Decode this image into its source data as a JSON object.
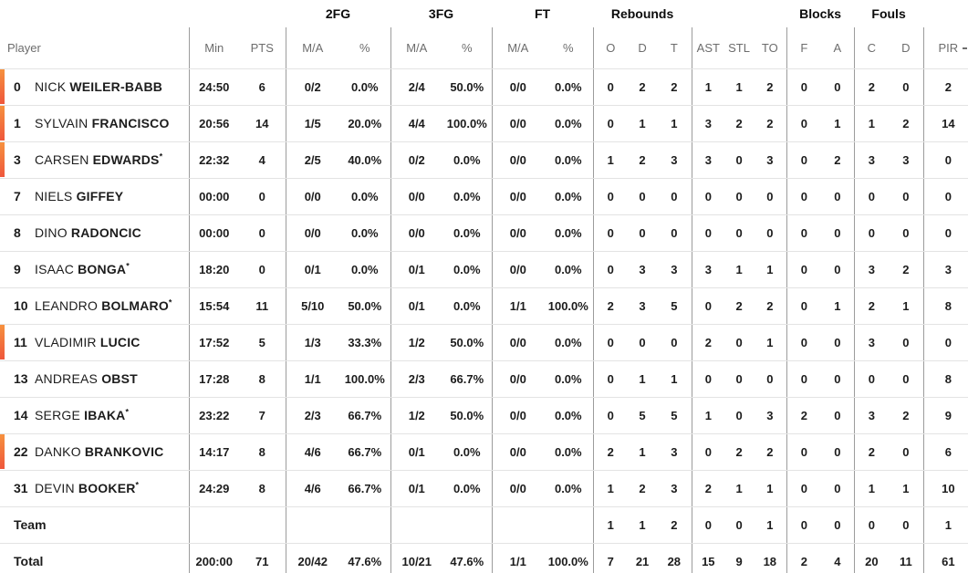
{
  "table": {
    "starter_mark": "*",
    "colors": {
      "accent_gradient_top": "#f6913e",
      "accent_gradient_bottom": "#ef573c",
      "vertical_line": "#9c9c9c",
      "row_line": "#e3e3e3",
      "header_text": "#6d6d6d",
      "text": "#1c1c1c"
    },
    "groups": {
      "fg2": "2FG",
      "fg3": "3FG",
      "ft": "FT",
      "rebounds": "Rebounds",
      "blocks": "Blocks",
      "fouls": "Fouls"
    },
    "columns": {
      "player": "Player",
      "min": "Min",
      "pts": "PTS",
      "ma": "M/A",
      "pct": "%",
      "reb_o": "O",
      "reb_d": "D",
      "reb_t": "T",
      "ast": "AST",
      "stl": "STL",
      "to": "TO",
      "blk_f": "F",
      "blk_a": "A",
      "foul_c": "C",
      "foul_d": "D",
      "pir": "PIR"
    },
    "players": [
      {
        "number": "0",
        "first": "NICK",
        "last": "WEILER-BABB",
        "starter": false,
        "on_court": true,
        "min": "24:50",
        "pts": "6",
        "fg2_ma": "0/2",
        "fg2_pct": "0.0%",
        "fg3_ma": "2/4",
        "fg3_pct": "50.0%",
        "ft_ma": "0/0",
        "ft_pct": "0.0%",
        "reb_o": "0",
        "reb_d": "2",
        "reb_t": "2",
        "ast": "1",
        "stl": "1",
        "to": "2",
        "blk_f": "0",
        "blk_a": "0",
        "foul_c": "2",
        "foul_d": "0",
        "pir": "2"
      },
      {
        "number": "1",
        "first": "SYLVAIN",
        "last": "FRANCISCO",
        "starter": false,
        "on_court": true,
        "min": "20:56",
        "pts": "14",
        "fg2_ma": "1/5",
        "fg2_pct": "20.0%",
        "fg3_ma": "4/4",
        "fg3_pct": "100.0%",
        "ft_ma": "0/0",
        "ft_pct": "0.0%",
        "reb_o": "0",
        "reb_d": "1",
        "reb_t": "1",
        "ast": "3",
        "stl": "2",
        "to": "2",
        "blk_f": "0",
        "blk_a": "1",
        "foul_c": "1",
        "foul_d": "2",
        "pir": "14"
      },
      {
        "number": "3",
        "first": "CARSEN",
        "last": "EDWARDS",
        "starter": true,
        "on_court": true,
        "min": "22:32",
        "pts": "4",
        "fg2_ma": "2/5",
        "fg2_pct": "40.0%",
        "fg3_ma": "0/2",
        "fg3_pct": "0.0%",
        "ft_ma": "0/0",
        "ft_pct": "0.0%",
        "reb_o": "1",
        "reb_d": "2",
        "reb_t": "3",
        "ast": "3",
        "stl": "0",
        "to": "3",
        "blk_f": "0",
        "blk_a": "2",
        "foul_c": "3",
        "foul_d": "3",
        "pir": "0"
      },
      {
        "number": "7",
        "first": "NIELS",
        "last": "GIFFEY",
        "starter": false,
        "on_court": false,
        "min": "00:00",
        "pts": "0",
        "fg2_ma": "0/0",
        "fg2_pct": "0.0%",
        "fg3_ma": "0/0",
        "fg3_pct": "0.0%",
        "ft_ma": "0/0",
        "ft_pct": "0.0%",
        "reb_o": "0",
        "reb_d": "0",
        "reb_t": "0",
        "ast": "0",
        "stl": "0",
        "to": "0",
        "blk_f": "0",
        "blk_a": "0",
        "foul_c": "0",
        "foul_d": "0",
        "pir": "0"
      },
      {
        "number": "8",
        "first": "DINO",
        "last": "RADONCIC",
        "starter": false,
        "on_court": false,
        "min": "00:00",
        "pts": "0",
        "fg2_ma": "0/0",
        "fg2_pct": "0.0%",
        "fg3_ma": "0/0",
        "fg3_pct": "0.0%",
        "ft_ma": "0/0",
        "ft_pct": "0.0%",
        "reb_o": "0",
        "reb_d": "0",
        "reb_t": "0",
        "ast": "0",
        "stl": "0",
        "to": "0",
        "blk_f": "0",
        "blk_a": "0",
        "foul_c": "0",
        "foul_d": "0",
        "pir": "0"
      },
      {
        "number": "9",
        "first": "ISAAC",
        "last": "BONGA",
        "starter": true,
        "on_court": false,
        "min": "18:20",
        "pts": "0",
        "fg2_ma": "0/1",
        "fg2_pct": "0.0%",
        "fg3_ma": "0/1",
        "fg3_pct": "0.0%",
        "ft_ma": "0/0",
        "ft_pct": "0.0%",
        "reb_o": "0",
        "reb_d": "3",
        "reb_t": "3",
        "ast": "3",
        "stl": "1",
        "to": "1",
        "blk_f": "0",
        "blk_a": "0",
        "foul_c": "3",
        "foul_d": "2",
        "pir": "3"
      },
      {
        "number": "10",
        "first": "LEANDRO",
        "last": "BOLMARO",
        "starter": true,
        "on_court": false,
        "min": "15:54",
        "pts": "11",
        "fg2_ma": "5/10",
        "fg2_pct": "50.0%",
        "fg3_ma": "0/1",
        "fg3_pct": "0.0%",
        "ft_ma": "1/1",
        "ft_pct": "100.0%",
        "reb_o": "2",
        "reb_d": "3",
        "reb_t": "5",
        "ast": "0",
        "stl": "2",
        "to": "2",
        "blk_f": "0",
        "blk_a": "1",
        "foul_c": "2",
        "foul_d": "1",
        "pir": "8"
      },
      {
        "number": "11",
        "first": "VLADIMIR",
        "last": "LUCIC",
        "starter": false,
        "on_court": true,
        "min": "17:52",
        "pts": "5",
        "fg2_ma": "1/3",
        "fg2_pct": "33.3%",
        "fg3_ma": "1/2",
        "fg3_pct": "50.0%",
        "ft_ma": "0/0",
        "ft_pct": "0.0%",
        "reb_o": "0",
        "reb_d": "0",
        "reb_t": "0",
        "ast": "2",
        "stl": "0",
        "to": "1",
        "blk_f": "0",
        "blk_a": "0",
        "foul_c": "3",
        "foul_d": "0",
        "pir": "0"
      },
      {
        "number": "13",
        "first": "ANDREAS",
        "last": "OBST",
        "starter": false,
        "on_court": false,
        "min": "17:28",
        "pts": "8",
        "fg2_ma": "1/1",
        "fg2_pct": "100.0%",
        "fg3_ma": "2/3",
        "fg3_pct": "66.7%",
        "ft_ma": "0/0",
        "ft_pct": "0.0%",
        "reb_o": "0",
        "reb_d": "1",
        "reb_t": "1",
        "ast": "0",
        "stl": "0",
        "to": "0",
        "blk_f": "0",
        "blk_a": "0",
        "foul_c": "0",
        "foul_d": "0",
        "pir": "8"
      },
      {
        "number": "14",
        "first": "SERGE",
        "last": "IBAKA",
        "starter": true,
        "on_court": false,
        "min": "23:22",
        "pts": "7",
        "fg2_ma": "2/3",
        "fg2_pct": "66.7%",
        "fg3_ma": "1/2",
        "fg3_pct": "50.0%",
        "ft_ma": "0/0",
        "ft_pct": "0.0%",
        "reb_o": "0",
        "reb_d": "5",
        "reb_t": "5",
        "ast": "1",
        "stl": "0",
        "to": "3",
        "blk_f": "2",
        "blk_a": "0",
        "foul_c": "3",
        "foul_d": "2",
        "pir": "9"
      },
      {
        "number": "22",
        "first": "DANKO",
        "last": "BRANKOVIC",
        "starter": false,
        "on_court": true,
        "min": "14:17",
        "pts": "8",
        "fg2_ma": "4/6",
        "fg2_pct": "66.7%",
        "fg3_ma": "0/1",
        "fg3_pct": "0.0%",
        "ft_ma": "0/0",
        "ft_pct": "0.0%",
        "reb_o": "2",
        "reb_d": "1",
        "reb_t": "3",
        "ast": "0",
        "stl": "2",
        "to": "2",
        "blk_f": "0",
        "blk_a": "0",
        "foul_c": "2",
        "foul_d": "0",
        "pir": "6"
      },
      {
        "number": "31",
        "first": "DEVIN",
        "last": "BOOKER",
        "starter": true,
        "on_court": false,
        "min": "24:29",
        "pts": "8",
        "fg2_ma": "4/6",
        "fg2_pct": "66.7%",
        "fg3_ma": "0/1",
        "fg3_pct": "0.0%",
        "ft_ma": "0/0",
        "ft_pct": "0.0%",
        "reb_o": "1",
        "reb_d": "2",
        "reb_t": "3",
        "ast": "2",
        "stl": "1",
        "to": "1",
        "blk_f": "0",
        "blk_a": "0",
        "foul_c": "1",
        "foul_d": "1",
        "pir": "10"
      }
    ],
    "team_row": {
      "label": "Team",
      "reb_o": "1",
      "reb_d": "1",
      "reb_t": "2",
      "ast": "0",
      "stl": "0",
      "to": "1",
      "blk_f": "0",
      "blk_a": "0",
      "foul_c": "0",
      "foul_d": "0",
      "pir": "1"
    },
    "total_row": {
      "label": "Total",
      "min": "200:00",
      "pts": "71",
      "fg2_ma": "20/42",
      "fg2_pct": "47.6%",
      "fg3_ma": "10/21",
      "fg3_pct": "47.6%",
      "ft_ma": "1/1",
      "ft_pct": "100.0%",
      "reb_o": "7",
      "reb_d": "21",
      "reb_t": "28",
      "ast": "15",
      "stl": "9",
      "to": "18",
      "blk_f": "2",
      "blk_a": "4",
      "foul_c": "20",
      "foul_d": "11",
      "pir": "61"
    }
  }
}
